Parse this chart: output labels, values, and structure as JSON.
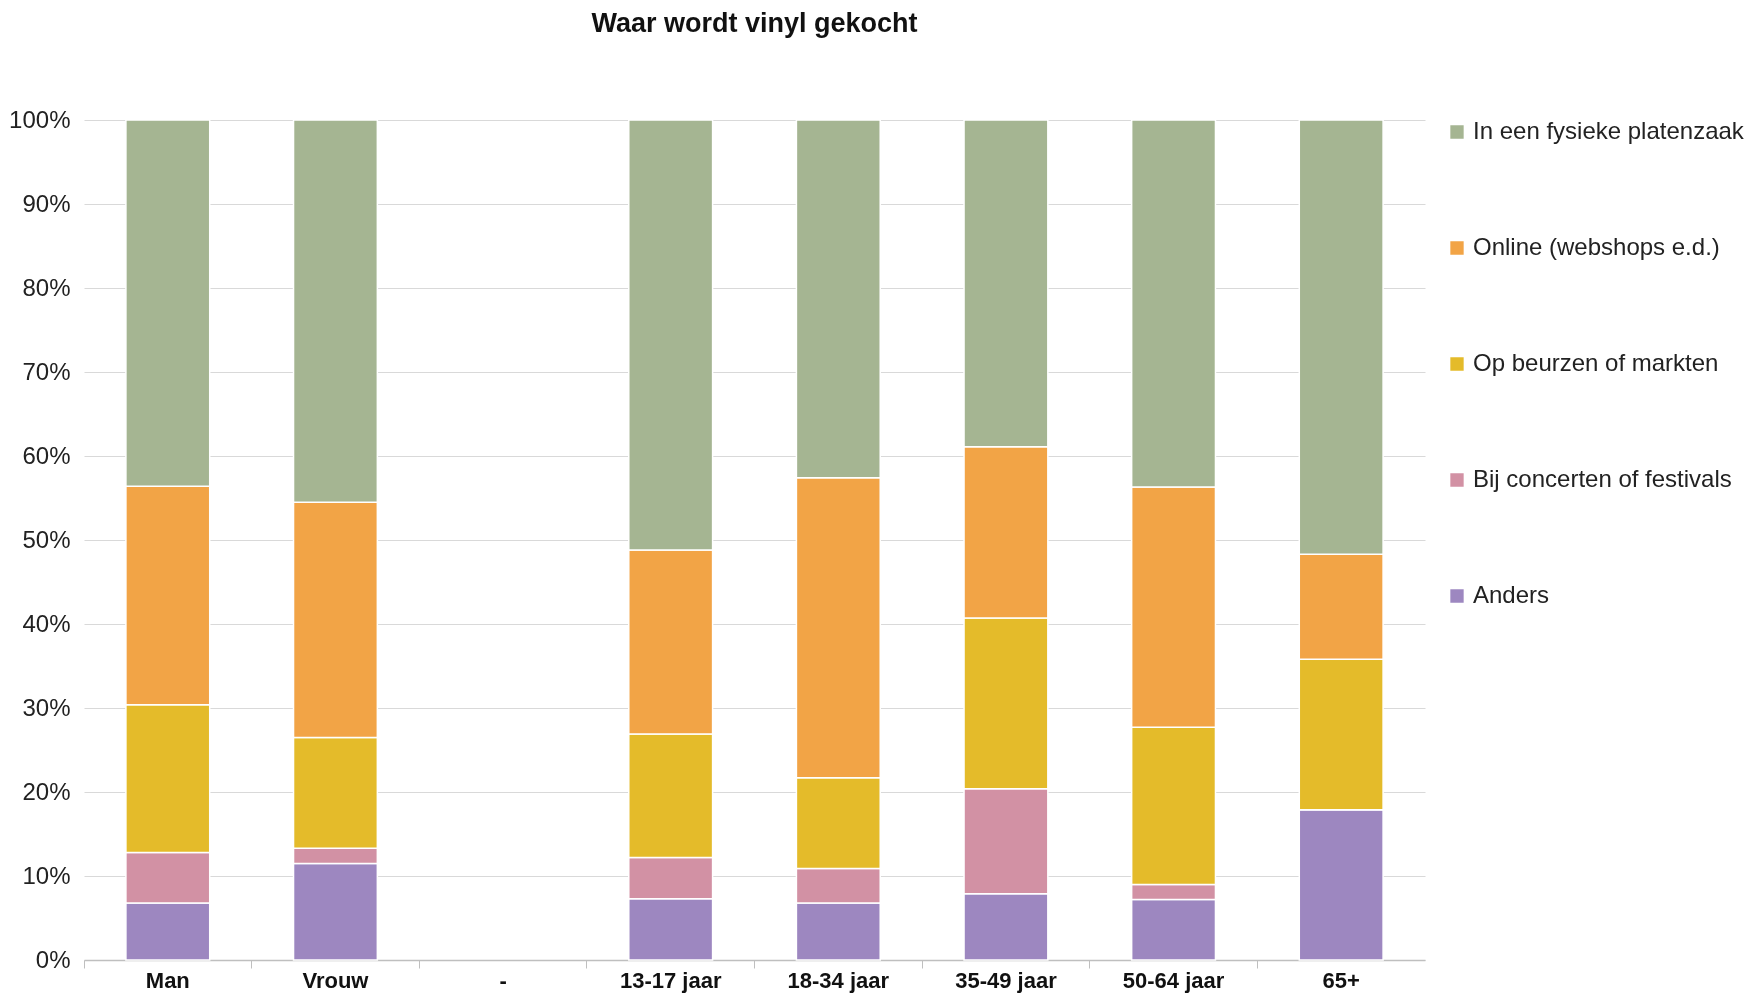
{
  "chart_data": {
    "type": "bar",
    "title": "Waar wordt vinyl gekocht",
    "stacked": true,
    "grid": "y",
    "legend": "right",
    "categories": [
      "Man",
      "Vrouw",
      "-",
      "13-17 jaar",
      "18-34 jaar",
      "35-49 jaar",
      "50-64 jaar",
      "65+"
    ],
    "ylim": [
      0,
      100
    ],
    "yticks": [
      {
        "value": 0,
        "label": "0%"
      },
      {
        "value": 10,
        "label": "10%"
      },
      {
        "value": 20,
        "label": "20%"
      },
      {
        "value": 30,
        "label": "30%"
      },
      {
        "value": 40,
        "label": "40%"
      },
      {
        "value": 50,
        "label": "50%"
      },
      {
        "value": 60,
        "label": "60%"
      },
      {
        "value": 70,
        "label": "70%"
      },
      {
        "value": 80,
        "label": "80%"
      },
      {
        "value": 90,
        "label": "90%"
      },
      {
        "value": 100,
        "label": "100%"
      }
    ],
    "series": [
      {
        "name": "Anders",
        "color": "#9d87c0",
        "values": [
          6.8,
          11.5,
          null,
          7.3,
          6.8,
          7.9,
          7.2,
          17.9
        ]
      },
      {
        "name": "Bij concerten of festivals",
        "color": "#d291a4",
        "values": [
          6.0,
          1.8,
          null,
          4.9,
          4.1,
          12.5,
          1.8,
          0
        ]
      },
      {
        "name": "Op beurzen of markten",
        "color": "#e4bb2a",
        "values": [
          17.6,
          13.2,
          null,
          14.7,
          10.8,
          20.3,
          18.7,
          17.9
        ]
      },
      {
        "name": "Online (webshops e.d.)",
        "color": "#f2a446",
        "values": [
          26.0,
          28.0,
          null,
          21.9,
          35.7,
          20.4,
          28.6,
          12.5
        ]
      },
      {
        "name": "In een fysieke platenzaak",
        "color": "#a5b592",
        "values": [
          43.6,
          45.5,
          null,
          51.2,
          42.6,
          38.9,
          43.7,
          51.7
        ]
      }
    ]
  }
}
